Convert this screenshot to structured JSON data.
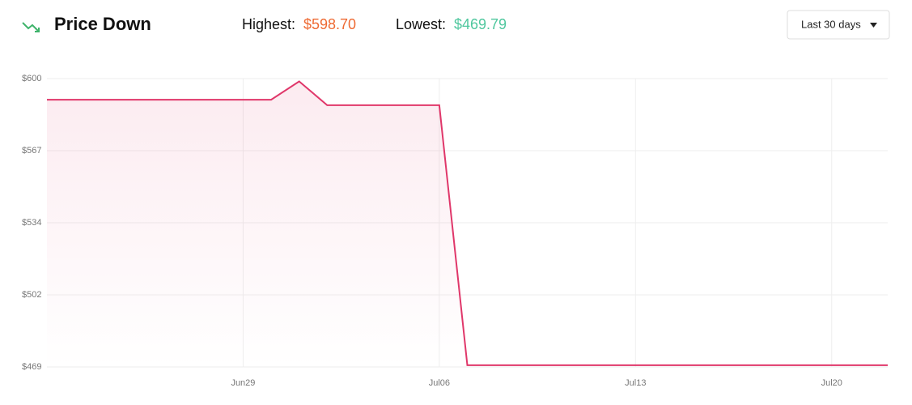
{
  "header": {
    "title": "Price Down",
    "highest_label": "Highest:",
    "highest": "$598.70",
    "lowest_label": "Lowest:",
    "lowest": "$469.79",
    "range": "Last 30 days"
  },
  "chart_data": {
    "type": "line",
    "color": "#e0376a",
    "grid": true,
    "categories": [
      null,
      null,
      null,
      null,
      null,
      null,
      null,
      "Jun29",
      null,
      null,
      null,
      null,
      null,
      null,
      "Jul06",
      null,
      null,
      null,
      null,
      null,
      null,
      "Jul13",
      null,
      null,
      null,
      null,
      null,
      null,
      "Jul20",
      null,
      null
    ],
    "values": [
      590.4,
      590.4,
      590.4,
      590.4,
      590.4,
      590.4,
      590.4,
      590.4,
      590.4,
      598.7,
      587.9,
      587.9,
      587.9,
      587.9,
      587.9,
      469.79,
      469.79,
      469.79,
      469.79,
      469.79,
      469.79,
      469.79,
      469.79,
      469.79,
      469.79,
      469.79,
      469.79,
      469.79,
      469.79,
      469.79,
      469.79
    ],
    "ylim": [
      469,
      600
    ],
    "yticks": [
      {
        "value": 600,
        "label": "$600"
      },
      {
        "value": 567.25,
        "label": "$567"
      },
      {
        "value": 534.5,
        "label": "$534"
      },
      {
        "value": 501.75,
        "label": "$502"
      },
      {
        "value": 469,
        "label": "$469"
      }
    ]
  }
}
